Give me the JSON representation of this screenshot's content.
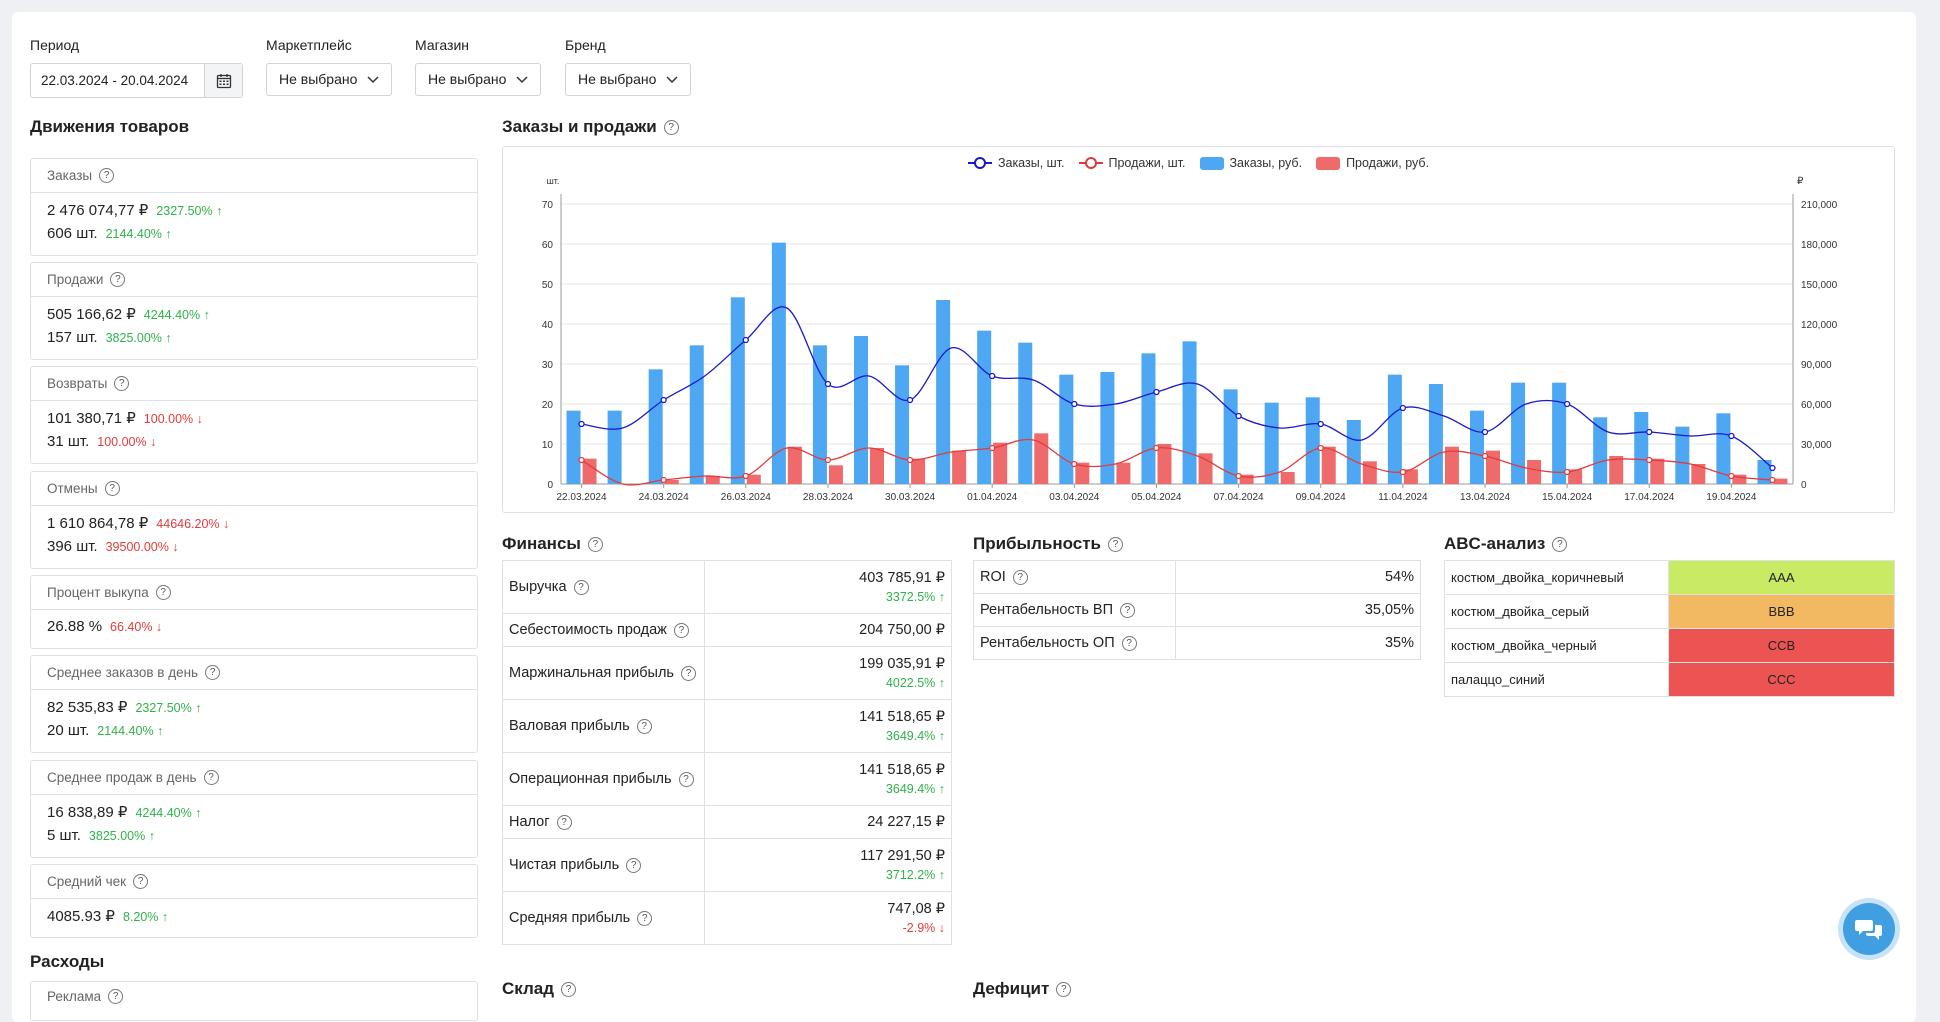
{
  "filters": {
    "period_label": "Период",
    "period_value": "22.03.2024 - 20.04.2024",
    "marketplace_label": "Маркетплейс",
    "marketplace_value": "Не выбрано",
    "store_label": "Магазин",
    "store_value": "Не выбрано",
    "brand_label": "Бренд",
    "brand_value": "Не выбрано"
  },
  "movements": {
    "title": "Движения товаров",
    "cards": [
      {
        "label": "Заказы",
        "lines": [
          {
            "value": "2 476 074,77 ₽",
            "change": "2327.50% ↑",
            "dir": "up"
          },
          {
            "value": "606 шт.",
            "change": "2144.40% ↑",
            "dir": "up"
          }
        ]
      },
      {
        "label": "Продажи",
        "lines": [
          {
            "value": "505 166,62 ₽",
            "change": "4244.40% ↑",
            "dir": "up"
          },
          {
            "value": "157 шт.",
            "change": "3825.00% ↑",
            "dir": "up"
          }
        ]
      },
      {
        "label": "Возвраты",
        "lines": [
          {
            "value": "101 380,71 ₽",
            "change": "100.00% ↓",
            "dir": "down"
          },
          {
            "value": "31 шт.",
            "change": "100.00% ↓",
            "dir": "down"
          }
        ]
      },
      {
        "label": "Отмены",
        "lines": [
          {
            "value": "1 610 864,78 ₽",
            "change": "44646.20% ↓",
            "dir": "down"
          },
          {
            "value": "396 шт.",
            "change": "39500.00% ↓",
            "dir": "down"
          }
        ]
      },
      {
        "label": "Процент выкупа",
        "lines": [
          {
            "value": "26.88 %",
            "change": "66.40% ↓",
            "dir": "down"
          }
        ]
      },
      {
        "label": "Среднее заказов в день",
        "lines": [
          {
            "value": "82 535,83 ₽",
            "change": "2327.50% ↑",
            "dir": "up"
          },
          {
            "value": "20 шт.",
            "change": "2144.40% ↑",
            "dir": "up"
          }
        ]
      },
      {
        "label": "Среднее продаж в день",
        "lines": [
          {
            "value": "16 838,89 ₽",
            "change": "4244.40% ↑",
            "dir": "up"
          },
          {
            "value": "5 шт.",
            "change": "3825.00% ↑",
            "dir": "up"
          }
        ]
      },
      {
        "label": "Средний чек",
        "lines": [
          {
            "value": "4085.93 ₽",
            "change": "8.20% ↑",
            "dir": "up"
          }
        ]
      }
    ]
  },
  "expenses": {
    "title": "Расходы",
    "first_card": "Реклама"
  },
  "orders_sales": {
    "title": "Заказы и продажи"
  },
  "chart_data": {
    "type": "bar",
    "left_axis_unit": "шт.",
    "right_axis_unit": "₽",
    "legend": [
      "Заказы, шт.",
      "Продажи, шт.",
      "Заказы, руб.",
      "Продажи, руб."
    ],
    "x_tick_labels": [
      "22.03.2024",
      "24.03.2024",
      "26.03.2024",
      "28.03.2024",
      "30.03.2024",
      "01.04.2024",
      "03.04.2024",
      "05.04.2024",
      "07.04.2024",
      "09.04.2024",
      "11.04.2024",
      "13.04.2024",
      "15.04.2024",
      "17.04.2024",
      "19.04.2024"
    ],
    "left_ylim": [
      0,
      70
    ],
    "left_ticks": [
      0,
      10,
      20,
      30,
      40,
      50,
      60,
      70
    ],
    "right_ylim": [
      0,
      210000
    ],
    "right_ticks": [
      "0",
      "30,000",
      "60,000",
      "90,000",
      "120,000",
      "150,000",
      "180,000",
      "210,000"
    ],
    "right_tick_values": [
      0,
      30000,
      60000,
      90000,
      120000,
      150000,
      180000,
      210000
    ],
    "categories": [
      "22.03",
      "23.03",
      "24.03",
      "25.03",
      "26.03",
      "27.03",
      "28.03",
      "29.03",
      "30.03",
      "31.03",
      "01.04",
      "02.04",
      "03.04",
      "04.04",
      "05.04",
      "06.04",
      "07.04",
      "08.04",
      "09.04",
      "10.04",
      "11.04",
      "12.04",
      "13.04",
      "14.04",
      "15.04",
      "16.04",
      "17.04",
      "18.04",
      "19.04",
      "20.04"
    ],
    "series": [
      {
        "name": "Заказы, шт.",
        "axis": "left",
        "kind": "line",
        "color": "#1a1acc",
        "values": [
          15,
          14,
          21,
          27,
          36,
          44,
          25,
          27,
          21,
          34,
          27,
          26,
          20,
          20,
          23,
          25,
          17,
          14,
          15,
          11,
          19,
          17,
          13,
          20,
          20,
          13,
          13,
          12,
          12,
          4
        ]
      },
      {
        "name": "Продажи, шт.",
        "axis": "left",
        "kind": "line",
        "color": "#e33b3b",
        "values": [
          6,
          0,
          1,
          2,
          2,
          9,
          6,
          9,
          6,
          8,
          9,
          11,
          5,
          5,
          9,
          7,
          2,
          3,
          9,
          5,
          3,
          8,
          7,
          4,
          3,
          6,
          6,
          5,
          2,
          1
        ]
      },
      {
        "name": "Заказы, руб.",
        "axis": "right",
        "kind": "bar",
        "color": "#4da7f2",
        "values": [
          55000,
          55000,
          86000,
          104000,
          140000,
          181000,
          104000,
          111000,
          89000,
          138000,
          115000,
          106000,
          82000,
          84000,
          98000,
          107000,
          71000,
          61000,
          65000,
          48000,
          82000,
          75000,
          55000,
          76000,
          76000,
          50000,
          54000,
          43000,
          53000,
          18000
        ]
      },
      {
        "name": "Продажи, руб.",
        "axis": "right",
        "kind": "bar",
        "color": "#ef6b6b",
        "values": [
          19000,
          0,
          3000,
          6000,
          7000,
          28000,
          14000,
          27000,
          19000,
          25000,
          31000,
          38000,
          16000,
          16000,
          30000,
          23000,
          7000,
          9000,
          28000,
          17000,
          11000,
          28000,
          25000,
          18000,
          11000,
          21000,
          19000,
          15000,
          7000,
          4000
        ]
      }
    ]
  },
  "finances": {
    "title": "Финансы",
    "rows": [
      {
        "label": "Выручка",
        "value": "403 785,91 ₽",
        "change": "3372.5% ↑",
        "dir": "up"
      },
      {
        "label": "Себестоимость продаж",
        "value": "204 750,00 ₽",
        "change": "",
        "dir": ""
      },
      {
        "label": "Маржинальная прибыль",
        "value": "199 035,91 ₽",
        "change": "4022.5% ↑",
        "dir": "up"
      },
      {
        "label": "Валовая прибыль",
        "value": "141 518,65 ₽",
        "change": "3649.4% ↑",
        "dir": "up"
      },
      {
        "label": "Операционная прибыль",
        "value": "141 518,65 ₽",
        "change": "3649.4% ↑",
        "dir": "up"
      },
      {
        "label": "Налог",
        "value": "24 227,15 ₽",
        "change": "",
        "dir": ""
      },
      {
        "label": "Чистая прибыль",
        "value": "117 291,50 ₽",
        "change": "3712.2% ↑",
        "dir": "up"
      },
      {
        "label": "Средняя прибыль",
        "value": "747,08 ₽",
        "change": "-2.9% ↓",
        "dir": "down"
      }
    ]
  },
  "profitability": {
    "title": "Прибыльность",
    "rows": [
      {
        "label": "ROI",
        "value": "54%"
      },
      {
        "label": "Рентабельность ВП",
        "value": "35,05%"
      },
      {
        "label": "Рентабельность ОП",
        "value": "35%"
      }
    ]
  },
  "abc": {
    "title": "ABC-анализ",
    "rows": [
      {
        "label": "костюм_двойка_коричневый",
        "grade": "AAA",
        "color": "#c9ea64"
      },
      {
        "label": "костюм_двойка_серый",
        "grade": "BBB",
        "color": "#f2b862"
      },
      {
        "label": "костюм_двойка_черный",
        "grade": "CCB",
        "color": "#ec5454"
      },
      {
        "label": "палаццо_синий",
        "grade": "CCC",
        "color": "#ec5454"
      }
    ]
  },
  "warehouse": {
    "title": "Склад"
  },
  "deficit": {
    "title": "Дефицит"
  },
  "help_glyph": "?",
  "icons": {
    "calendar": "calendar-icon",
    "chevron": "chevron-down-icon",
    "help": "help-circle-icon",
    "chat": "chat-icon"
  }
}
